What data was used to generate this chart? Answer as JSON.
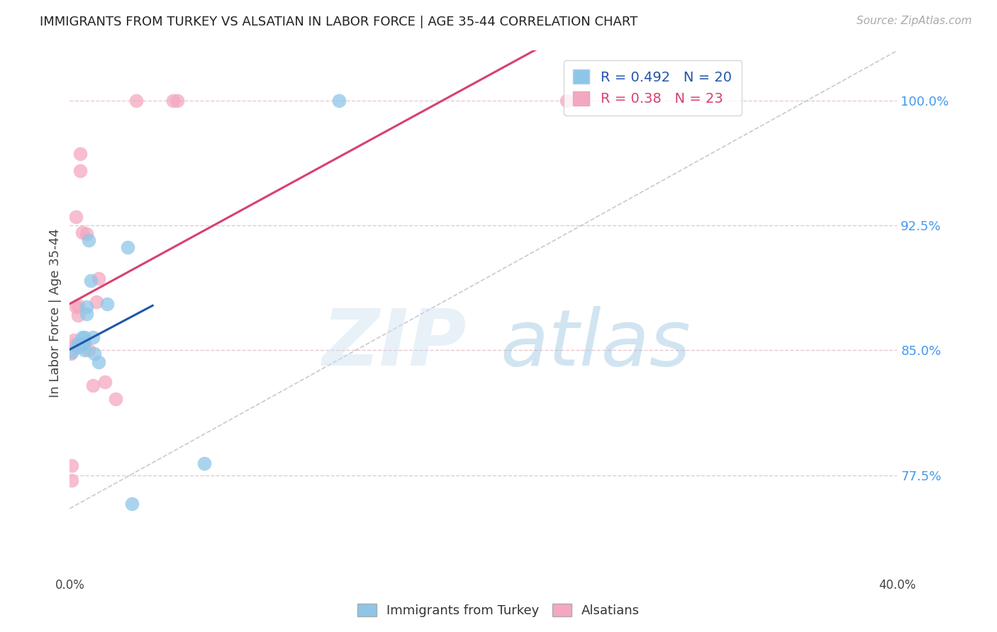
{
  "title": "IMMIGRANTS FROM TURKEY VS ALSATIAN IN LABOR FORCE | AGE 35-44 CORRELATION CHART",
  "source": "Source: ZipAtlas.com",
  "ylabel": "In Labor Force | Age 35-44",
  "ytick_labels": [
    "77.5%",
    "85.0%",
    "92.5%",
    "100.0%"
  ],
  "ytick_values": [
    0.775,
    0.85,
    0.925,
    1.0
  ],
  "xlim": [
    0.0,
    0.4
  ],
  "ylim": [
    0.715,
    1.03
  ],
  "blue_label": "Immigrants from Turkey",
  "pink_label": "Alsatians",
  "blue_R": 0.492,
  "blue_N": 20,
  "pink_R": 0.38,
  "pink_N": 23,
  "blue_color": "#8ec6e8",
  "pink_color": "#f4a8bf",
  "trend_blue": "#2255aa",
  "trend_pink": "#d94070",
  "blue_scatter_x": [
    0.001,
    0.004,
    0.004,
    0.006,
    0.006,
    0.007,
    0.007,
    0.007,
    0.008,
    0.008,
    0.009,
    0.01,
    0.011,
    0.012,
    0.014,
    0.018,
    0.028,
    0.03,
    0.065,
    0.13
  ],
  "blue_scatter_y": [
    0.849,
    0.852,
    0.854,
    0.854,
    0.858,
    0.858,
    0.85,
    0.854,
    0.872,
    0.876,
    0.916,
    0.892,
    0.858,
    0.848,
    0.843,
    0.878,
    0.912,
    0.758,
    0.782,
    1.0
  ],
  "pink_scatter_x": [
    0.0005,
    0.001,
    0.001,
    0.002,
    0.002,
    0.003,
    0.003,
    0.004,
    0.004,
    0.005,
    0.005,
    0.006,
    0.008,
    0.009,
    0.011,
    0.013,
    0.014,
    0.017,
    0.022,
    0.032,
    0.05,
    0.052,
    0.24
  ],
  "pink_scatter_y": [
    0.848,
    0.772,
    0.781,
    0.856,
    0.853,
    0.93,
    0.876,
    0.871,
    0.877,
    0.958,
    0.968,
    0.921,
    0.92,
    0.85,
    0.829,
    0.879,
    0.893,
    0.831,
    0.821,
    1.0,
    1.0,
    1.0,
    1.0
  ],
  "background_color": "#ffffff",
  "grid_color": "#e8c8d0",
  "title_color": "#222222",
  "axis_label_color": "#444444",
  "ytick_color": "#4499ee",
  "xtick_color": "#444444"
}
